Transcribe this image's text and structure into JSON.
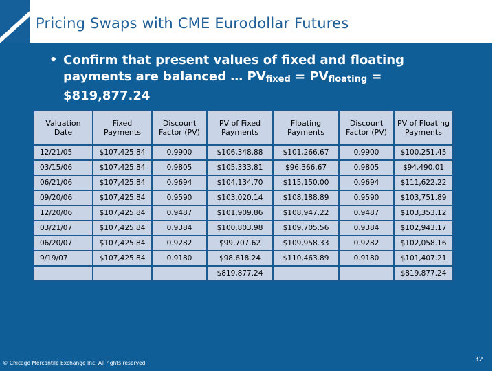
{
  "slide": {
    "title": "Pricing Swaps with CME Eurodollar Futures",
    "bullet_line1": "Confirm that  present values of fixed and floating",
    "bullet_line2_a": "payments are balanced … PV",
    "bullet_line2_sub1": "fixed",
    "bullet_line2_b": " = PV",
    "bullet_line2_sub2": "floating",
    "bullet_line2_c": " =",
    "bullet_line3": "$819,877.24",
    "footer": "© Chicago Mercantile Exchange Inc. All rights reserved.",
    "page_number": "32"
  },
  "table": {
    "headers": [
      "Valuation Date",
      "Fixed Payments",
      "Discount Factor (PV)",
      "PV of Fixed Payments",
      "Floating Payments",
      "Discount Factor (PV)",
      "PV of Floating Payments"
    ],
    "rows": [
      [
        "12/21/05",
        "$107,425.84",
        "0.9900",
        "$106,348.88",
        "$101,266.67",
        "0.9900",
        "$100,251.45"
      ],
      [
        "03/15/06",
        "$107,425.84",
        "0.9805",
        "$105,333.81",
        "$96,366.67",
        "0.9805",
        "$94,490.01"
      ],
      [
        "06/21/06",
        "$107,425.84",
        "0.9694",
        "$104,134.70",
        "$115,150.00",
        "0.9694",
        "$111,622.22"
      ],
      [
        "09/20/06",
        "$107,425.84",
        "0.9590",
        "$103,020.14",
        "$108,188.89",
        "0.9590",
        "$103,751.89"
      ],
      [
        "12/20/06",
        "$107,425.84",
        "0.9487",
        "$101,909.86",
        "$108,947.22",
        "0.9487",
        "$103,353.12"
      ],
      [
        "03/21/07",
        "$107,425.84",
        "0.9384",
        "$100,803.98",
        "$109,705.56",
        "0.9384",
        "$102,943.17"
      ],
      [
        "06/20/07",
        "$107,425.84",
        "0.9282",
        "$99,707.62",
        "$109,958.33",
        "0.9282",
        "$102,058.16"
      ],
      [
        "9/19/07",
        "$107,425.84",
        "0.9180",
        "$98,618.24",
        "$110,463.89",
        "0.9180",
        "$101,407.21"
      ]
    ],
    "totals": [
      "",
      "",
      "",
      "$819,877.24",
      "",
      "",
      "$819,877.24"
    ]
  }
}
